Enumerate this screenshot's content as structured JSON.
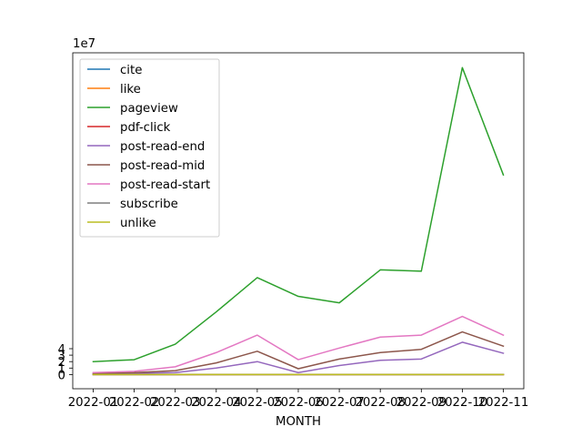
{
  "chart_data": {
    "type": "line",
    "xlabel": "MONTH",
    "ylabel": "",
    "y_multiplier": "1e7",
    "ylim": [
      -2.2,
      49.8
    ],
    "y_ticks": [
      0,
      1,
      2,
      3,
      4
    ],
    "categories": [
      "2022-01",
      "2022-02",
      "2022-03",
      "2022-04",
      "2022-05",
      "2022-06",
      "2022-07",
      "2022-08",
      "2022-09",
      "2022-10",
      "2022-11"
    ],
    "legend_position": "upper-left",
    "grid": false,
    "series": [
      {
        "name": "cite",
        "color": "#1f77b4",
        "values": [
          0,
          0,
          0,
          0,
          0,
          0,
          0,
          0,
          0,
          0,
          0
        ]
      },
      {
        "name": "like",
        "color": "#ff7f0e",
        "values": [
          0,
          0,
          0,
          0,
          0,
          0,
          0,
          0,
          0,
          0,
          0
        ]
      },
      {
        "name": "pageview",
        "color": "#2ca02c",
        "values": [
          2.0,
          2.3,
          4.7,
          9.7,
          15.0,
          12.1,
          11.1,
          16.2,
          16.0,
          47.5,
          30.9
        ]
      },
      {
        "name": "pdf-click",
        "color": "#d62728",
        "values": [
          0,
          0,
          0,
          0,
          0,
          0,
          0,
          0,
          0,
          0,
          0
        ]
      },
      {
        "name": "post-read-end",
        "color": "#9467bd",
        "values": [
          0.1,
          0.2,
          0.3,
          1.0,
          2.0,
          0.3,
          1.4,
          2.2,
          2.4,
          5.0,
          3.3
        ]
      },
      {
        "name": "post-read-mid",
        "color": "#8c564b",
        "values": [
          0.2,
          0.3,
          0.6,
          1.8,
          3.6,
          0.9,
          2.4,
          3.4,
          3.9,
          6.6,
          4.4
        ]
      },
      {
        "name": "post-read-start",
        "color": "#e377c2",
        "values": [
          0.3,
          0.5,
          1.2,
          3.4,
          6.1,
          2.3,
          4.1,
          5.8,
          6.1,
          9.0,
          6.1
        ]
      },
      {
        "name": "subscribe",
        "color": "#7f7f7f",
        "values": [
          0,
          0,
          0,
          0,
          0,
          0,
          0,
          0,
          0,
          0,
          0
        ]
      },
      {
        "name": "unlike",
        "color": "#bcbd22",
        "values": [
          0,
          0,
          0,
          0,
          0,
          0,
          0,
          0,
          0,
          0,
          0
        ]
      }
    ]
  }
}
